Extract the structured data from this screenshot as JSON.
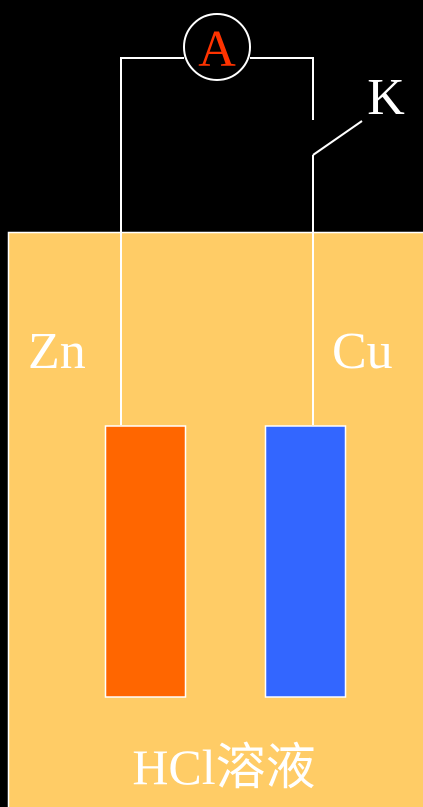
{
  "ammeter": {
    "label": "A"
  },
  "switch": {
    "label": "K"
  },
  "electrodes": [
    {
      "label": "Zn"
    },
    {
      "label": "Cu"
    }
  ],
  "solution": {
    "label": "HCl溶液"
  }
}
